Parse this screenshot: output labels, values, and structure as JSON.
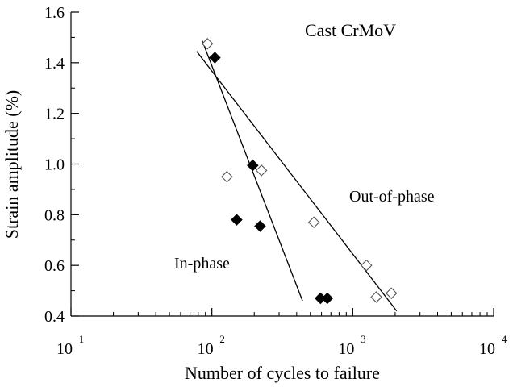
{
  "chart_data": {
    "type": "scatter",
    "title": "Cast CrMoV",
    "xlabel": "Number of cycles to failure",
    "ylabel": "Strain amplitude (%)",
    "xscale": "log",
    "xlim": [
      10,
      10000
    ],
    "ylim": [
      0.4,
      1.6
    ],
    "x_ticks": [
      {
        "base": "10",
        "exp": "1",
        "value": 10
      },
      {
        "base": "10",
        "exp": "2",
        "value": 100
      },
      {
        "base": "10",
        "exp": "3",
        "value": 1000
      },
      {
        "base": "10",
        "exp": "4",
        "value": 10000
      }
    ],
    "y_ticks": [
      {
        "label": "0.4",
        "value": 0.4
      },
      {
        "label": "0.6",
        "value": 0.6
      },
      {
        "label": "0.8",
        "value": 0.8
      },
      {
        "label": "1.0",
        "value": 1.0
      },
      {
        "label": "1.2",
        "value": 1.2
      },
      {
        "label": "1.4",
        "value": 1.4
      },
      {
        "label": "1.6",
        "value": 1.6
      }
    ],
    "grid": false,
    "series": [
      {
        "name": "In-phase",
        "marker": "filled-diamond",
        "color": "#000000",
        "points": [
          {
            "x": 105,
            "y": 1.42
          },
          {
            "x": 195,
            "y": 0.995
          },
          {
            "x": 150,
            "y": 0.78
          },
          {
            "x": 220,
            "y": 0.755
          },
          {
            "x": 590,
            "y": 0.47
          },
          {
            "x": 660,
            "y": 0.47
          }
        ],
        "fit_line": [
          [
            85,
            1.49
          ],
          [
            440,
            0.46
          ]
        ]
      },
      {
        "name": "Out-of-phase",
        "marker": "open-diamond",
        "color": "#000000",
        "points": [
          {
            "x": 93,
            "y": 1.475
          },
          {
            "x": 128,
            "y": 0.95
          },
          {
            "x": 225,
            "y": 0.975
          },
          {
            "x": 530,
            "y": 0.77
          },
          {
            "x": 1250,
            "y": 0.6
          },
          {
            "x": 1470,
            "y": 0.475
          },
          {
            "x": 1880,
            "y": 0.49
          }
        ],
        "fit_line": [
          [
            78,
            1.445
          ],
          [
            2050,
            0.42
          ]
        ]
      }
    ],
    "annotations": [
      {
        "text": "In-phase"
      },
      {
        "text": "Out-of-phase"
      }
    ]
  }
}
